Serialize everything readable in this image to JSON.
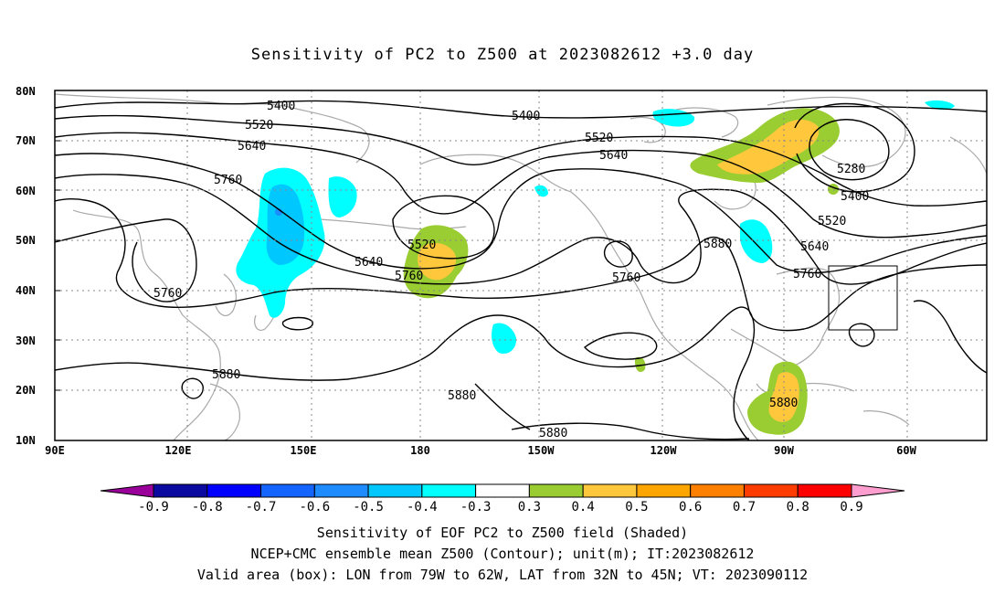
{
  "title": "Sensitivity of PC2 to Z500 at 2023082612 +3.0 day",
  "axes": {
    "lon_ticks": [
      "90E",
      "120E",
      "150E",
      "180",
      "150W",
      "120W",
      "90W",
      "60W"
    ],
    "lat_ticks": [
      "80N",
      "70N",
      "60N",
      "50N",
      "40N",
      "30N",
      "20N",
      "10N"
    ]
  },
  "contour_labels": [
    "5400",
    "5400",
    "5520",
    "5640",
    "5760",
    "5760",
    "5880",
    "5280",
    "5400",
    "5520",
    "5640",
    "5760",
    "5520",
    "5640",
    "5760",
    "5520",
    "5640",
    "5760",
    "5880",
    "5880",
    "5880",
    "5880"
  ],
  "colorbar": {
    "labels": [
      "-0.9",
      "-0.8",
      "-0.7",
      "-0.6",
      "-0.5",
      "-0.4",
      "-0.3",
      "0.3",
      "0.4",
      "0.5",
      "0.6",
      "0.7",
      "0.8",
      "0.9"
    ],
    "colors": [
      "#9a009a",
      "#0a0aa0",
      "#0000ff",
      "#1464ff",
      "#1e8cff",
      "#00c8ff",
      "#00ffff",
      "#ffffff",
      "#9acd32",
      "#ffc83c",
      "#ffa500",
      "#ff7f00",
      "#ff3c00",
      "#ff0000",
      "#ff9ecf"
    ]
  },
  "notes": [
    "Sensitivity of EOF PC2 to Z500 field (Shaded)",
    "NCEP+CMC ensemble mean Z500 (Contour); unit(m); IT:2023082612",
    "Valid area (box): LON from 79W to 62W, LAT from 32N to 45N; VT: 2023090112"
  ]
}
